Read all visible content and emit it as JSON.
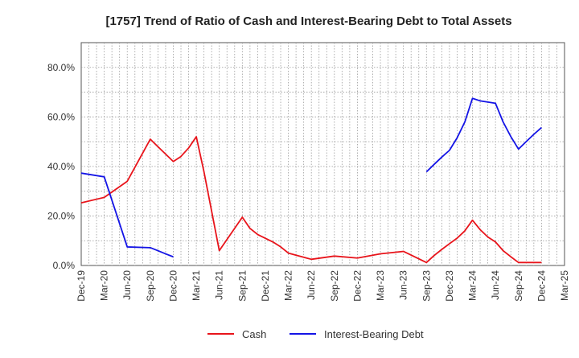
{
  "chart_data": {
    "type": "line",
    "title": "[1757]  Trend of Ratio of Cash and Interest-Bearing Debt to Total Assets",
    "xlabel": "",
    "ylabel": "",
    "ylim": [
      0,
      90
    ],
    "y_ticks": [
      0,
      20,
      40,
      60,
      80
    ],
    "y_tick_labels": [
      "0.0%",
      "20.0%",
      "40.0%",
      "60.0%",
      "80.0%"
    ],
    "x_tick_labels": [
      "Dec-19",
      "Mar-20",
      "Jun-20",
      "Sep-20",
      "Dec-20",
      "Mar-21",
      "Jun-21",
      "Sep-21",
      "Dec-21",
      "Mar-22",
      "Jun-22",
      "Sep-22",
      "Dec-22",
      "Mar-23",
      "Jun-23",
      "Sep-23",
      "Dec-23",
      "Mar-24",
      "Jun-24",
      "Sep-24",
      "Dec-24",
      "Mar-25"
    ],
    "grid": true,
    "legend_position": "bottom",
    "series": [
      {
        "name": "Cash",
        "color": "#e8141b",
        "points": [
          [
            0,
            25.3
          ],
          [
            1,
            27.5
          ],
          [
            2,
            34.0
          ],
          [
            3,
            51.0
          ],
          [
            3.33,
            48.0
          ],
          [
            4,
            42.0
          ],
          [
            4.33,
            44.0
          ],
          [
            4.67,
            47.5
          ],
          [
            5,
            52.0
          ],
          [
            5.33,
            38.0
          ],
          [
            6,
            6.0
          ],
          [
            7,
            19.5
          ],
          [
            7.33,
            15.0
          ],
          [
            7.67,
            12.5
          ],
          [
            8,
            11.0
          ],
          [
            8.33,
            9.5
          ],
          [
            8.67,
            7.5
          ],
          [
            9,
            5.0
          ],
          [
            10,
            2.5
          ],
          [
            11,
            3.8
          ],
          [
            12,
            3.0
          ],
          [
            13,
            4.7
          ],
          [
            14,
            5.7
          ],
          [
            15,
            1.2
          ],
          [
            15.33,
            4.0
          ],
          [
            15.67,
            6.5
          ],
          [
            16,
            8.8
          ],
          [
            16.33,
            11.0
          ],
          [
            16.67,
            14.0
          ],
          [
            17,
            18.3
          ],
          [
            17.33,
            14.5
          ],
          [
            17.67,
            11.5
          ],
          [
            18,
            9.5
          ],
          [
            18.33,
            6.0
          ],
          [
            18.67,
            3.5
          ],
          [
            19,
            1.2
          ],
          [
            20,
            1.2
          ]
        ]
      },
      {
        "name": "Interest-Bearing Debt",
        "color": "#1414e6",
        "segments": [
          [
            [
              0,
              37.3
            ],
            [
              1,
              35.8
            ],
            [
              2,
              7.5
            ],
            [
              3,
              7.2
            ],
            [
              3.33,
              6.0
            ],
            [
              3.67,
              4.7
            ],
            [
              4,
              3.5
            ]
          ],
          [
            [
              15,
              37.8
            ],
            [
              15.33,
              40.8
            ],
            [
              15.67,
              43.8
            ],
            [
              16,
              46.5
            ],
            [
              16.33,
              51.5
            ],
            [
              16.67,
              58.0
            ],
            [
              17,
              67.5
            ],
            [
              17.33,
              66.5
            ],
            [
              17.67,
              66.0
            ],
            [
              18,
              65.5
            ],
            [
              18.33,
              58.0
            ],
            [
              18.67,
              52.0
            ],
            [
              19,
              47.0
            ],
            [
              19.33,
              50.0
            ],
            [
              19.67,
              53.0
            ],
            [
              20,
              55.7
            ]
          ]
        ]
      }
    ]
  }
}
